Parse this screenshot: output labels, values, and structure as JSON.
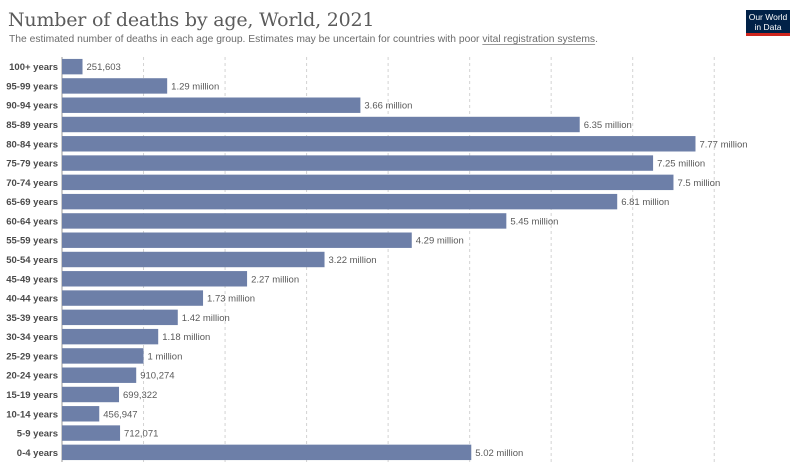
{
  "header": {
    "title": "Number of deaths by age, World, 2021",
    "subtitle_pre": "The estimated number of deaths in each age group. Estimates may be uncertain for countries with poor ",
    "subtitle_link": "vital registration systems",
    "subtitle_post": ".",
    "logo_line1": "Our World",
    "logo_line2": "in Data"
  },
  "colors": {
    "bar": "#6d7fa8",
    "logo_bg": "#002147",
    "logo_accent": "#ce261e"
  },
  "chart_data": {
    "type": "bar",
    "orientation": "horizontal",
    "grid": true,
    "xlim": [
      0,
      8500000
    ],
    "categories": [
      "100+ years",
      "95-99 years",
      "90-94 years",
      "85-89 years",
      "80-84 years",
      "75-79 years",
      "70-74 years",
      "65-69 years",
      "60-64 years",
      "55-59 years",
      "50-54 years",
      "45-49 years",
      "40-44 years",
      "35-39 years",
      "30-34 years",
      "25-29 years",
      "20-24 years",
      "15-19 years",
      "10-14 years",
      "5-9 years",
      "0-4 years"
    ],
    "values": [
      251603,
      1290000,
      3660000,
      6350000,
      7770000,
      7250000,
      7500000,
      6810000,
      5450000,
      4290000,
      3220000,
      2270000,
      1730000,
      1420000,
      1180000,
      1000000,
      910274,
      699322,
      456947,
      712071,
      5020000
    ],
    "value_labels": [
      "251,603",
      "1.29 million",
      "3.66 million",
      "6.35 million",
      "7.77 million",
      "7.25 million",
      "7.5 million",
      "6.81 million",
      "5.45 million",
      "4.29 million",
      "3.22 million",
      "2.27 million",
      "1.73 million",
      "1.42 million",
      "1.18 million",
      "1 million",
      "910,274",
      "699,322",
      "456,947",
      "712,071",
      "5.02 million"
    ]
  }
}
